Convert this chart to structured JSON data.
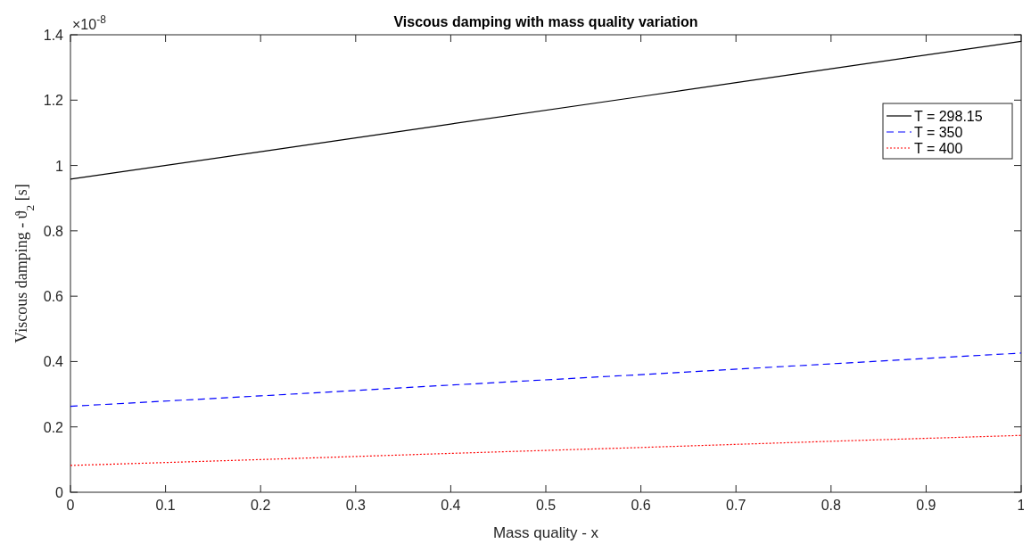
{
  "chart_data": {
    "type": "line",
    "title": "Viscous damping with mass quality variation",
    "xlabel": "Mass quality - x",
    "ylabel": "Viscous damping - ϑ$_{2}$ [s]",
    "annotations": [
      "×10$^{-8}$"
    ],
    "x": [
      0,
      0.2,
      0.4,
      0.6,
      0.8,
      1
    ],
    "xlim": [
      0,
      1
    ],
    "xticks": [
      0,
      0.1,
      0.2,
      0.3,
      0.4,
      0.5,
      0.6,
      0.7,
      0.8,
      0.9,
      1
    ],
    "ylim": [
      0,
      1.4
    ],
    "yticks": [
      0,
      0.2,
      0.4,
      0.6,
      0.8,
      1,
      1.2,
      1.4
    ],
    "grid": false,
    "legend": "top right",
    "series": [
      {
        "name": "T = 298.15",
        "color": "#000000",
        "line_style": "solid",
        "values": [
          0.958,
          1.042,
          1.127,
          1.211,
          1.296,
          1.38
        ]
      },
      {
        "name": "T = 350",
        "color": "#0000ff",
        "line_style": "dashed",
        "values": [
          0.263,
          0.295,
          0.328,
          0.36,
          0.393,
          0.426
        ]
      },
      {
        "name": "T = 400",
        "color": "#ff0000",
        "line_style": "dotted",
        "values": [
          0.082,
          0.1,
          0.119,
          0.137,
          0.156,
          0.174
        ]
      }
    ]
  }
}
